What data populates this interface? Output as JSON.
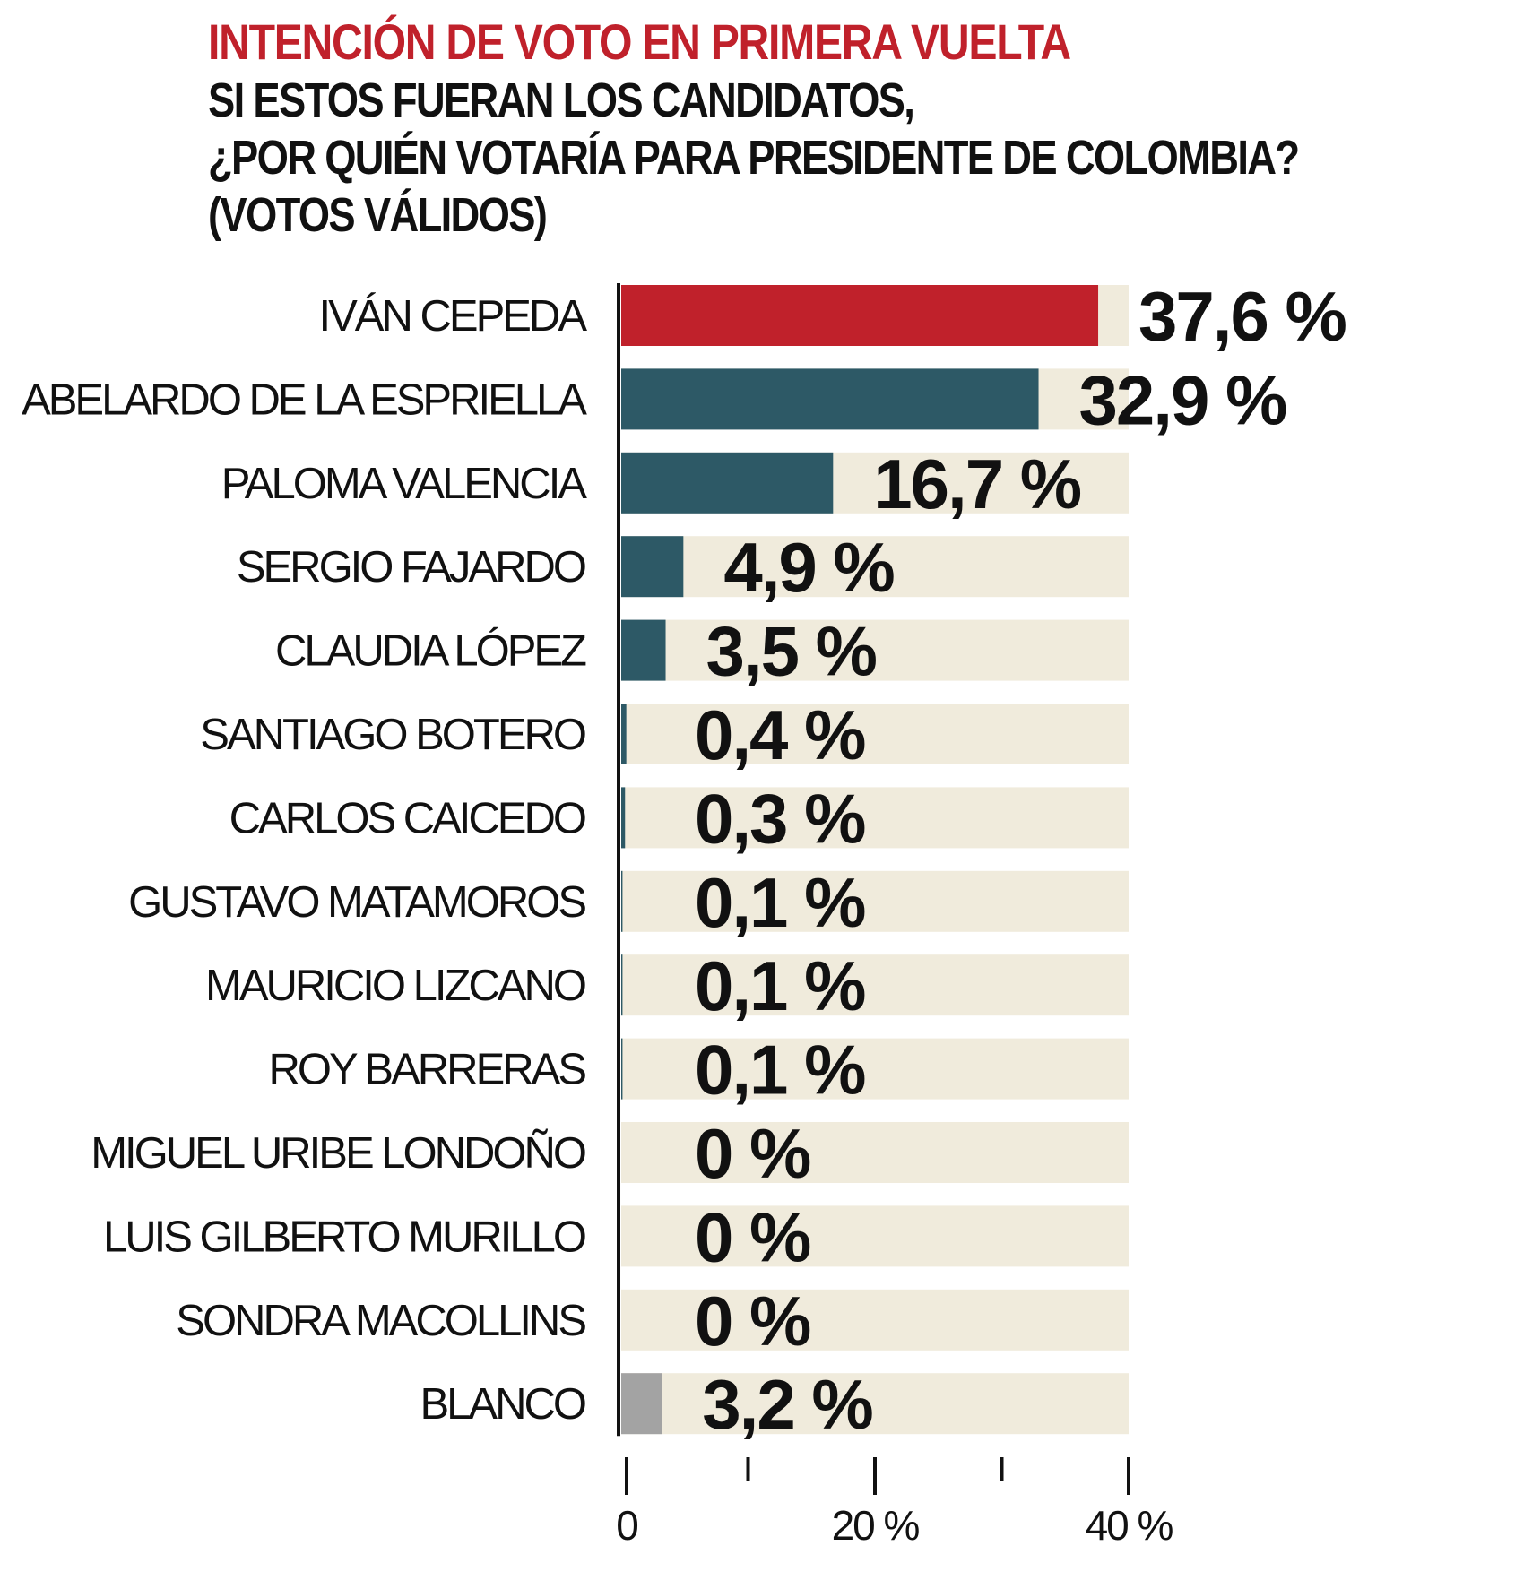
{
  "chart_data": {
    "type": "bar",
    "orientation": "horizontal",
    "title": "INTENCIÓN DE VOTO EN PRIMERA VUELTA",
    "subtitle": "SI ESTOS FUERAN LOS CANDIDATOS,\n¿POR QUIÉN VOTARÍA PARA PRESIDENTE DE COLOMBIA?\n(VOTOS VÁLIDOS)",
    "categories": [
      "IVÁN CEPEDA",
      "ABELARDO DE LA ESPRIELLA",
      "PALOMA VALENCIA",
      "SERGIO FAJARDO",
      "CLAUDIA LÓPEZ",
      "SANTIAGO BOTERO",
      "CARLOS CAICEDO",
      "GUSTAVO MATAMOROS",
      "MAURICIO LIZCANO",
      "ROY BARRERAS",
      "MIGUEL URIBE LONDOÑO",
      "LUIS GILBERTO MURILLO",
      "SONDRA MACOLLINS",
      "BLANCO"
    ],
    "values": [
      37.6,
      32.9,
      16.7,
      4.9,
      3.5,
      0.4,
      0.3,
      0.1,
      0.1,
      0.1,
      0,
      0,
      0,
      3.2
    ],
    "value_labels": [
      "37,6 %",
      "32,9 %",
      "16,7 %",
      "4,9 %",
      "3,5 %",
      "0,4 %",
      "0,3 %",
      "0,1 %",
      "0,1 %",
      "0,1 %",
      "0 %",
      "0 %",
      "0 %",
      "3,2 %"
    ],
    "xlim": [
      0,
      40
    ],
    "x_ticks": [
      {
        "value": 0,
        "label": "0"
      },
      {
        "value": 10,
        "label": ""
      },
      {
        "value": 20,
        "label": "20 %"
      },
      {
        "value": 30,
        "label": ""
      },
      {
        "value": 40,
        "label": "40 %"
      }
    ],
    "bar_colors": [
      "#c0212b",
      "#2d5966",
      "#2d5966",
      "#2d5966",
      "#2d5966",
      "#2d5966",
      "#2d5966",
      "#2d5966",
      "#2d5966",
      "#2d5966",
      "#2d5966",
      "#2d5966",
      "#2d5966",
      "#a3a3a3"
    ],
    "track_color": "#f0ebdc",
    "xlabel": "",
    "ylabel": "",
    "grid": false,
    "legend": "none"
  }
}
